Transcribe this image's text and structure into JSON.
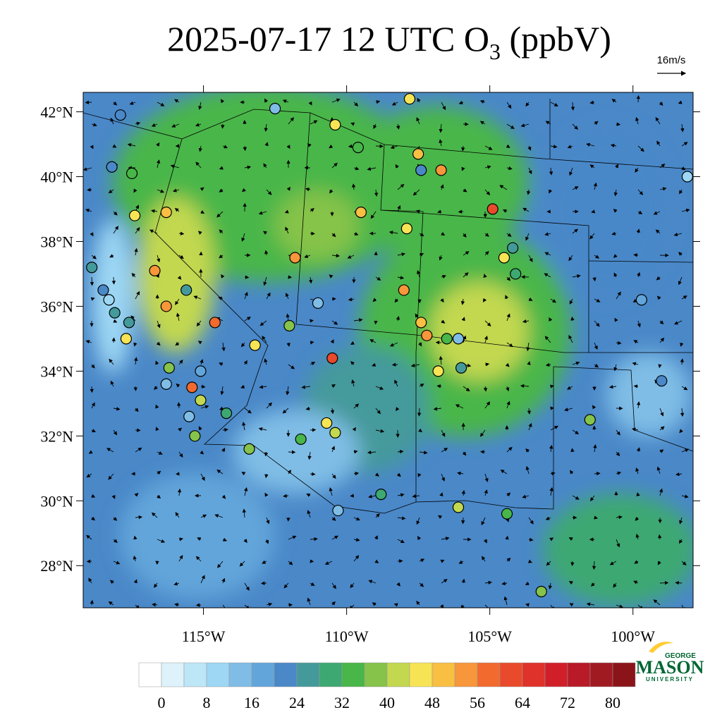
{
  "title": {
    "main": "2025-07-17 12 UTC O",
    "subscript": "3",
    "suffix": " (ppbV)"
  },
  "vector_reference": "16m/s",
  "map": {
    "lonlim": [
      -119.2,
      -97.9
    ],
    "latlim": [
      26.7,
      42.6
    ],
    "lat_labels": [
      {
        "value": 42,
        "label": "42°N"
      },
      {
        "value": 40,
        "label": "40°N"
      },
      {
        "value": 38,
        "label": "38°N"
      },
      {
        "value": 36,
        "label": "36°N"
      },
      {
        "value": 34,
        "label": "34°N"
      },
      {
        "value": 32,
        "label": "32°N"
      },
      {
        "value": 30,
        "label": "30°N"
      },
      {
        "value": 28,
        "label": "28°N"
      }
    ],
    "lon_labels": [
      {
        "value": -115,
        "label": "115°W"
      },
      {
        "value": -110,
        "label": "110°W"
      },
      {
        "value": -105,
        "label": "105°W"
      },
      {
        "value": -100,
        "label": "100°W"
      }
    ],
    "stations": [
      {
        "lon": -117.9,
        "lat": 41.9,
        "value": 22
      },
      {
        "lon": -112.5,
        "lat": 42.1,
        "value": 14
      },
      {
        "lon": -110.4,
        "lat": 41.6,
        "value": 47
      },
      {
        "lon": -107.8,
        "lat": 42.4,
        "value": 46
      },
      {
        "lon": -109.6,
        "lat": 40.9,
        "value": 35
      },
      {
        "lon": -107.5,
        "lat": 40.7,
        "value": 51
      },
      {
        "lon": -106.7,
        "lat": 40.2,
        "value": 53
      },
      {
        "lon": -104.9,
        "lat": 39.0,
        "value": 60
      },
      {
        "lon": -116.3,
        "lat": 38.9,
        "value": 48
      },
      {
        "lon": -117.4,
        "lat": 38.8,
        "value": 47
      },
      {
        "lon": -116.7,
        "lat": 37.1,
        "value": 52
      },
      {
        "lon": -115.6,
        "lat": 36.5,
        "value": 24
      },
      {
        "lon": -114.6,
        "lat": 35.5,
        "value": 56
      },
      {
        "lon": -116.3,
        "lat": 36.0,
        "value": 52
      },
      {
        "lon": -111.8,
        "lat": 37.5,
        "value": 54
      },
      {
        "lon": -109.5,
        "lat": 38.9,
        "value": 50
      },
      {
        "lon": -107.9,
        "lat": 38.4,
        "value": 47
      },
      {
        "lon": -108.0,
        "lat": 36.5,
        "value": 54
      },
      {
        "lon": -110.5,
        "lat": 34.4,
        "value": 62
      },
      {
        "lon": -111.0,
        "lat": 36.1,
        "value": 14
      },
      {
        "lon": -112.0,
        "lat": 35.4,
        "value": 37
      },
      {
        "lon": -113.2,
        "lat": 34.8,
        "value": 47
      },
      {
        "lon": -115.4,
        "lat": 33.5,
        "value": 56
      },
      {
        "lon": -115.1,
        "lat": 33.1,
        "value": 43
      },
      {
        "lon": -114.2,
        "lat": 32.7,
        "value": 30
      },
      {
        "lon": -113.4,
        "lat": 31.6,
        "value": 38
      },
      {
        "lon": -110.7,
        "lat": 32.4,
        "value": 46
      },
      {
        "lon": -110.4,
        "lat": 32.1,
        "value": 43
      },
      {
        "lon": -111.6,
        "lat": 31.9,
        "value": 34
      },
      {
        "lon": -110.3,
        "lat": 29.7,
        "value": 14
      },
      {
        "lon": -108.8,
        "lat": 30.2,
        "value": 30
      },
      {
        "lon": -106.1,
        "lat": 29.8,
        "value": 42
      },
      {
        "lon": -107.4,
        "lat": 35.5,
        "value": 48
      },
      {
        "lon": -107.2,
        "lat": 35.1,
        "value": 52
      },
      {
        "lon": -106.1,
        "lat": 35.0,
        "value": 14
      },
      {
        "lon": -106.5,
        "lat": 35.0,
        "value": 34
      },
      {
        "lon": -106.0,
        "lat": 34.1,
        "value": 25
      },
      {
        "lon": -106.8,
        "lat": 34.0,
        "value": 44
      },
      {
        "lon": -104.2,
        "lat": 37.8,
        "value": 24
      },
      {
        "lon": -104.5,
        "lat": 37.5,
        "value": 45
      },
      {
        "lon": -104.1,
        "lat": 37.0,
        "value": 30
      },
      {
        "lon": -101.5,
        "lat": 32.5,
        "value": 38
      },
      {
        "lon": -99.7,
        "lat": 36.2,
        "value": 18
      },
      {
        "lon": -99.0,
        "lat": 33.7,
        "value": 22
      },
      {
        "lon": -98.1,
        "lat": 40.0,
        "value": 10
      },
      {
        "lon": -103.2,
        "lat": 27.2,
        "value": 36
      },
      {
        "lon": -118.3,
        "lat": 36.2,
        "value": 10
      },
      {
        "lon": -118.5,
        "lat": 36.5,
        "value": 22
      },
      {
        "lon": -118.1,
        "lat": 35.8,
        "value": 24
      },
      {
        "lon": -118.9,
        "lat": 37.2,
        "value": 24
      },
      {
        "lon": -117.6,
        "lat": 35.5,
        "value": 24
      },
      {
        "lon": -118.2,
        "lat": 40.3,
        "value": 20
      },
      {
        "lon": -117.5,
        "lat": 40.1,
        "value": 34
      },
      {
        "lon": -117.7,
        "lat": 35.0,
        "value": 44
      },
      {
        "lon": -116.2,
        "lat": 34.1,
        "value": 37
      },
      {
        "lon": -115.1,
        "lat": 34.0,
        "value": 16
      },
      {
        "lon": -116.3,
        "lat": 33.6,
        "value": 14
      },
      {
        "lon": -115.5,
        "lat": 32.6,
        "value": 14
      },
      {
        "lon": -115.3,
        "lat": 32.0,
        "value": 37
      },
      {
        "lon": -107.4,
        "lat": 40.2,
        "value": 22
      },
      {
        "lon": -104.4,
        "lat": 29.6,
        "value": 35
      }
    ]
  },
  "colorbar": {
    "levels": [
      0,
      4,
      8,
      12,
      16,
      20,
      24,
      28,
      32,
      36,
      40,
      44,
      48,
      52,
      56,
      60,
      64,
      68,
      72,
      76,
      80
    ],
    "colors": [
      "#ffffff",
      "#ddf2fb",
      "#bde6f7",
      "#9dd7f4",
      "#7fbde6",
      "#62a5da",
      "#4a88c8",
      "#449a9b",
      "#3ea872",
      "#48b649",
      "#86c34a",
      "#c3d84f",
      "#f7e455",
      "#f8bf43",
      "#f7963a",
      "#f26a2e",
      "#e84a2b",
      "#df322a",
      "#d11f2a",
      "#b81a27",
      "#a01a22",
      "#8b1418"
    ],
    "labels": [
      0,
      8,
      16,
      24,
      32,
      40,
      48,
      56,
      64,
      72,
      80
    ]
  },
  "logo": {
    "top": "GEORGE",
    "main": "MASON",
    "bottom": "UNIVERSITY"
  }
}
